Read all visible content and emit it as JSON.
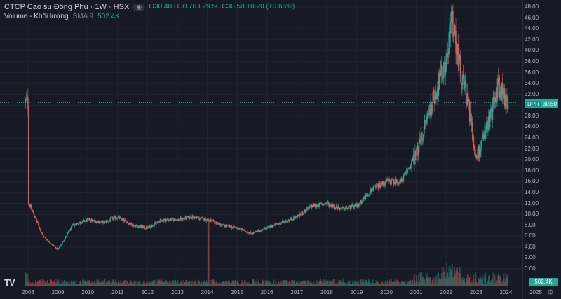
{
  "legend": {
    "title": "CTCP Cao su Đồng Phú · 1W · HSX",
    "eye_icon": "eye-icon",
    "open_key": "O",
    "open": "30.40",
    "high_key": "H",
    "high": "30.70",
    "low_key": "L",
    "low": "29.50",
    "close_key": "C",
    "close": "30.50",
    "change": "+0.20 (+0.66%)",
    "volume_label": "Volume - Khối lượng",
    "volume_sma": "SMA 9",
    "volume_value": "502.4K"
  },
  "price_axis": [
    "48.00",
    "46.00",
    "44.00",
    "42.00",
    "40.00",
    "38.00",
    "36.00",
    "34.00",
    "32.00",
    "30.00",
    "28.00",
    "26.00",
    "24.00",
    "22.00",
    "20.00",
    "18.00",
    "16.00",
    "14.00",
    "12.00",
    "10.00",
    "8.00",
    "6.00",
    "4.00",
    "2.00",
    "0.00"
  ],
  "time_axis": [
    "2008",
    "2009",
    "2010",
    "2011",
    "2012",
    "2013",
    "2014",
    "2015",
    "2016",
    "2017",
    "2018",
    "2019",
    "2020",
    "2021",
    "2022",
    "2023",
    "2024",
    "2025"
  ],
  "price_tag": {
    "symbol": "DPR",
    "value": "30.50"
  },
  "volume_tag": "502.4K",
  "logo_text": "TV",
  "colors": {
    "background": "#161a25",
    "up": "#26a69a",
    "down": "#ef5350",
    "grid": "#1f2430"
  },
  "chart_data": {
    "type": "line",
    "x": [
      "2008",
      "2008.5",
      "2009",
      "2009.5",
      "2010",
      "2010.5",
      "2011",
      "2011.5",
      "2012",
      "2012.5",
      "2013",
      "2013.5",
      "2014",
      "2014.5",
      "2015",
      "2015.5",
      "2016",
      "2016.5",
      "2017",
      "2017.5",
      "2018",
      "2018.5",
      "2019",
      "2019.5",
      "2020",
      "2020.5",
      "2021",
      "2021.5",
      "2022",
      "2022.2",
      "2022.5",
      "2022.75",
      "2023",
      "2023.5",
      "2023.75",
      "2024"
    ],
    "series": [
      {
        "values": [
          12.5,
          6.0,
          3.5,
          8.0,
          9.0,
          8.5,
          9.5,
          8.0,
          7.5,
          9.0,
          9.0,
          9.5,
          9.0,
          8.0,
          7.5,
          6.5,
          7.5,
          8.5,
          9.5,
          11.5,
          12.0,
          11.0,
          11.5,
          14.5,
          16.0,
          16.0,
          21.0,
          30.0,
          38.0,
          46.0,
          36.0,
          30.0,
          20.0,
          28.0,
          34.0,
          30.5
        ]
      }
    ],
    "ylim": [
      0,
      48
    ],
    "xlabel": "",
    "ylabel": "",
    "title": "CTCP Cao su Đồng Phú · 1W · HSX"
  }
}
